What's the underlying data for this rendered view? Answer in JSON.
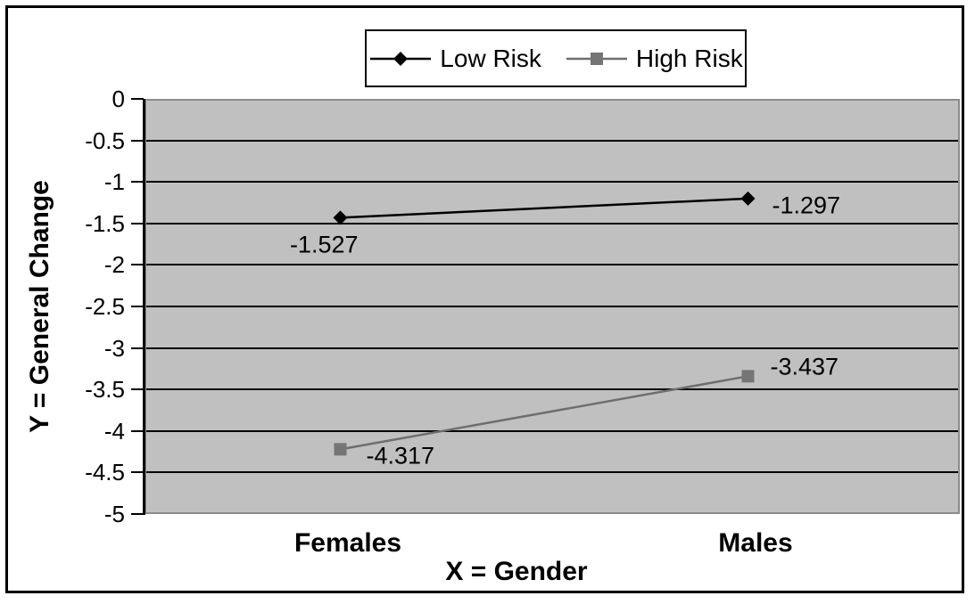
{
  "chart_data": {
    "type": "line",
    "categories": [
      "Females",
      "Males"
    ],
    "series": [
      {
        "name": "Low Risk",
        "values": [
          -1.527,
          -1.297
        ],
        "data_labels": [
          "-1.527",
          "-1.297"
        ],
        "color": "#000000",
        "marker": "diamond"
      },
      {
        "name": "High Risk",
        "values": [
          -4.317,
          -3.437
        ],
        "data_labels": [
          "-4.317",
          "-3.437"
        ],
        "color": "#6E6E6E",
        "marker": "square"
      }
    ],
    "xlabel": "X = Gender",
    "ylabel": "Y = General Change",
    "ylim": [
      -5,
      0
    ],
    "ytick_labels": [
      "0",
      "-0.5",
      "-1",
      "-1.5",
      "-2",
      "-2.5",
      "-3",
      "-3.5",
      "-4",
      "-4.5",
      "-5"
    ],
    "grid": true,
    "legend_position": "top-center",
    "plot_bg_color": "#C0C0C0",
    "gridline_color": "#000000",
    "plot_border_color": "#8C8C8C",
    "axis_color": "#000000"
  }
}
